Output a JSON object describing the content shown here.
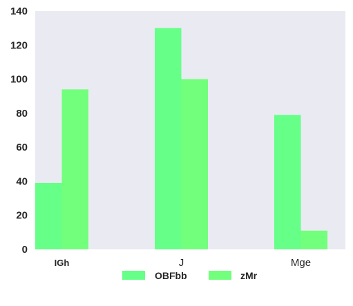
{
  "chart_data": {
    "type": "bar",
    "categories": [
      "IGh",
      "J",
      "Mge"
    ],
    "series": [
      {
        "name": "OBFbb",
        "values": [
          39,
          130,
          79
        ],
        "color": "#66ff88"
      },
      {
        "name": "zMr",
        "values": [
          94,
          100,
          11
        ],
        "color": "#72ff7c"
      }
    ],
    "ylim": [
      0,
      140
    ],
    "yticks": [
      0,
      20,
      40,
      60,
      80,
      100,
      120,
      140
    ],
    "grid": false,
    "legend_position": "bottom-center",
    "plot_background": "#eaeaf2",
    "tick_label_color": "#262626",
    "title": "",
    "xlabel": "",
    "ylabel": ""
  }
}
